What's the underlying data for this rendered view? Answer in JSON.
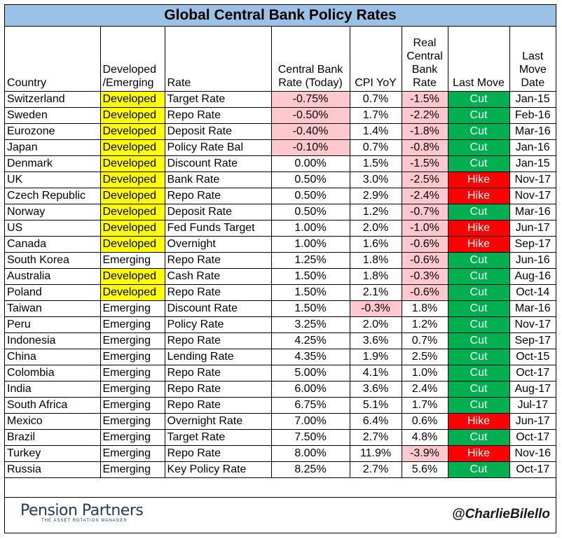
{
  "chart_data": {
    "type": "table",
    "title": "Global Central Bank Policy Rates",
    "columns": [
      "Country",
      "Developed /Emerging",
      "Rate",
      "Central Bank Rate (Today)",
      "CPI YoY",
      "Real Central Bank Rate",
      "Last Move",
      "Last Move Date"
    ],
    "rows": [
      {
        "country": "Switzerland",
        "type": "Developed",
        "rate": "Target Rate",
        "cb_rate": "-0.75%",
        "cpi": "0.7%",
        "real": "-1.5%",
        "move": "Cut",
        "date": "Jan-15"
      },
      {
        "country": "Sweden",
        "type": "Developed",
        "rate": "Repo Rate",
        "cb_rate": "-0.50%",
        "cpi": "1.7%",
        "real": "-2.2%",
        "move": "Cut",
        "date": "Feb-16"
      },
      {
        "country": "Eurozone",
        "type": "Developed",
        "rate": "Deposit Rate",
        "cb_rate": "-0.40%",
        "cpi": "1.4%",
        "real": "-1.8%",
        "move": "Cut",
        "date": "Mar-16"
      },
      {
        "country": "Japan",
        "type": "Developed",
        "rate": "Policy Rate Bal",
        "cb_rate": "-0.10%",
        "cpi": "0.7%",
        "real": "-0.8%",
        "move": "Cut",
        "date": "Jan-16"
      },
      {
        "country": "Denmark",
        "type": "Developed",
        "rate": "Discount Rate",
        "cb_rate": "0.00%",
        "cpi": "1.5%",
        "real": "-1.5%",
        "move": "Cut",
        "date": "Jan-15"
      },
      {
        "country": "UK",
        "type": "Developed",
        "rate": "Bank Rate",
        "cb_rate": "0.50%",
        "cpi": "3.0%",
        "real": "-2.5%",
        "move": "Hike",
        "date": "Nov-17"
      },
      {
        "country": "Czech Republic",
        "type": "Developed",
        "rate": "Repo Rate",
        "cb_rate": "0.50%",
        "cpi": "2.9%",
        "real": "-2.4%",
        "move": "Hike",
        "date": "Nov-17"
      },
      {
        "country": "Norway",
        "type": "Developed",
        "rate": "Deposit Rate",
        "cb_rate": "0.50%",
        "cpi": "1.2%",
        "real": "-0.7%",
        "move": "Cut",
        "date": "Mar-16"
      },
      {
        "country": "US",
        "type": "Developed",
        "rate": "Fed Funds Target",
        "cb_rate": "1.00%",
        "cpi": "2.0%",
        "real": "-1.0%",
        "move": "Hike",
        "date": "Jun-17"
      },
      {
        "country": "Canada",
        "type": "Developed",
        "rate": "Overnight",
        "cb_rate": "1.00%",
        "cpi": "1.6%",
        "real": "-0.6%",
        "move": "Hike",
        "date": "Sep-17"
      },
      {
        "country": "South Korea",
        "type": "Emerging",
        "rate": "Repo Rate",
        "cb_rate": "1.25%",
        "cpi": "1.8%",
        "real": "-0.6%",
        "move": "Cut",
        "date": "Jun-16"
      },
      {
        "country": "Australia",
        "type": "Developed",
        "rate": "Cash Rate",
        "cb_rate": "1.50%",
        "cpi": "1.8%",
        "real": "-0.3%",
        "move": "Cut",
        "date": "Aug-16"
      },
      {
        "country": "Poland",
        "type": "Developed",
        "rate": "Repo Rate",
        "cb_rate": "1.50%",
        "cpi": "2.1%",
        "real": "-0.6%",
        "move": "Cut",
        "date": "Oct-14"
      },
      {
        "country": "Taiwan",
        "type": "Emerging",
        "rate": "Discount Rate",
        "cb_rate": "1.50%",
        "cpi": "-0.3%",
        "real": "1.8%",
        "move": "Cut",
        "date": "Mar-16"
      },
      {
        "country": "Peru",
        "type": "Emerging",
        "rate": "Policy Rate",
        "cb_rate": "3.25%",
        "cpi": "2.0%",
        "real": "1.2%",
        "move": "Cut",
        "date": "Nov-17"
      },
      {
        "country": "Indonesia",
        "type": "Emerging",
        "rate": "Repo Rate",
        "cb_rate": "4.25%",
        "cpi": "3.6%",
        "real": "0.7%",
        "move": "Cut",
        "date": "Sep-17"
      },
      {
        "country": "China",
        "type": "Emerging",
        "rate": "Lending Rate",
        "cb_rate": "4.35%",
        "cpi": "1.9%",
        "real": "2.5%",
        "move": "Cut",
        "date": "Oct-15"
      },
      {
        "country": "Colombia",
        "type": "Emerging",
        "rate": "Repo Rate",
        "cb_rate": "5.00%",
        "cpi": "4.1%",
        "real": "1.0%",
        "move": "Cut",
        "date": "Oct-17"
      },
      {
        "country": "India",
        "type": "Emerging",
        "rate": "Repo Rate",
        "cb_rate": "6.00%",
        "cpi": "3.6%",
        "real": "2.4%",
        "move": "Cut",
        "date": "Aug-17"
      },
      {
        "country": "South Africa",
        "type": "Emerging",
        "rate": "Repo Rate",
        "cb_rate": "6.75%",
        "cpi": "5.1%",
        "real": "1.7%",
        "move": "Cut",
        "date": "Jul-17"
      },
      {
        "country": "Mexico",
        "type": "Emerging",
        "rate": "Overnight Rate",
        "cb_rate": "7.00%",
        "cpi": "6.4%",
        "real": "0.6%",
        "move": "Hike",
        "date": "Jun-17"
      },
      {
        "country": "Brazil",
        "type": "Emerging",
        "rate": "Target Rate",
        "cb_rate": "7.50%",
        "cpi": "2.7%",
        "real": "4.8%",
        "move": "Cut",
        "date": "Oct-17"
      },
      {
        "country": "Turkey",
        "type": "Emerging",
        "rate": "Repo Rate",
        "cb_rate": "8.00%",
        "cpi": "11.9%",
        "real": "-3.9%",
        "move": "Hike",
        "date": "Nov-16"
      },
      {
        "country": "Russia",
        "type": "Emerging",
        "rate": "Key Policy Rate",
        "cb_rate": "8.25%",
        "cpi": "2.7%",
        "real": "5.6%",
        "move": "Cut",
        "date": "Oct-17"
      }
    ]
  },
  "footer": {
    "logo_text": "Pension Partners",
    "logo_tagline": "THE ASSET ROTATION MANAGER",
    "handle": "@CharlieBilello"
  },
  "colors": {
    "title_bg": "#9bc2e6",
    "developed": "#ffff00",
    "negative": "#ffc7ce",
    "cut": "#00b050",
    "hike": "#ff0000"
  }
}
